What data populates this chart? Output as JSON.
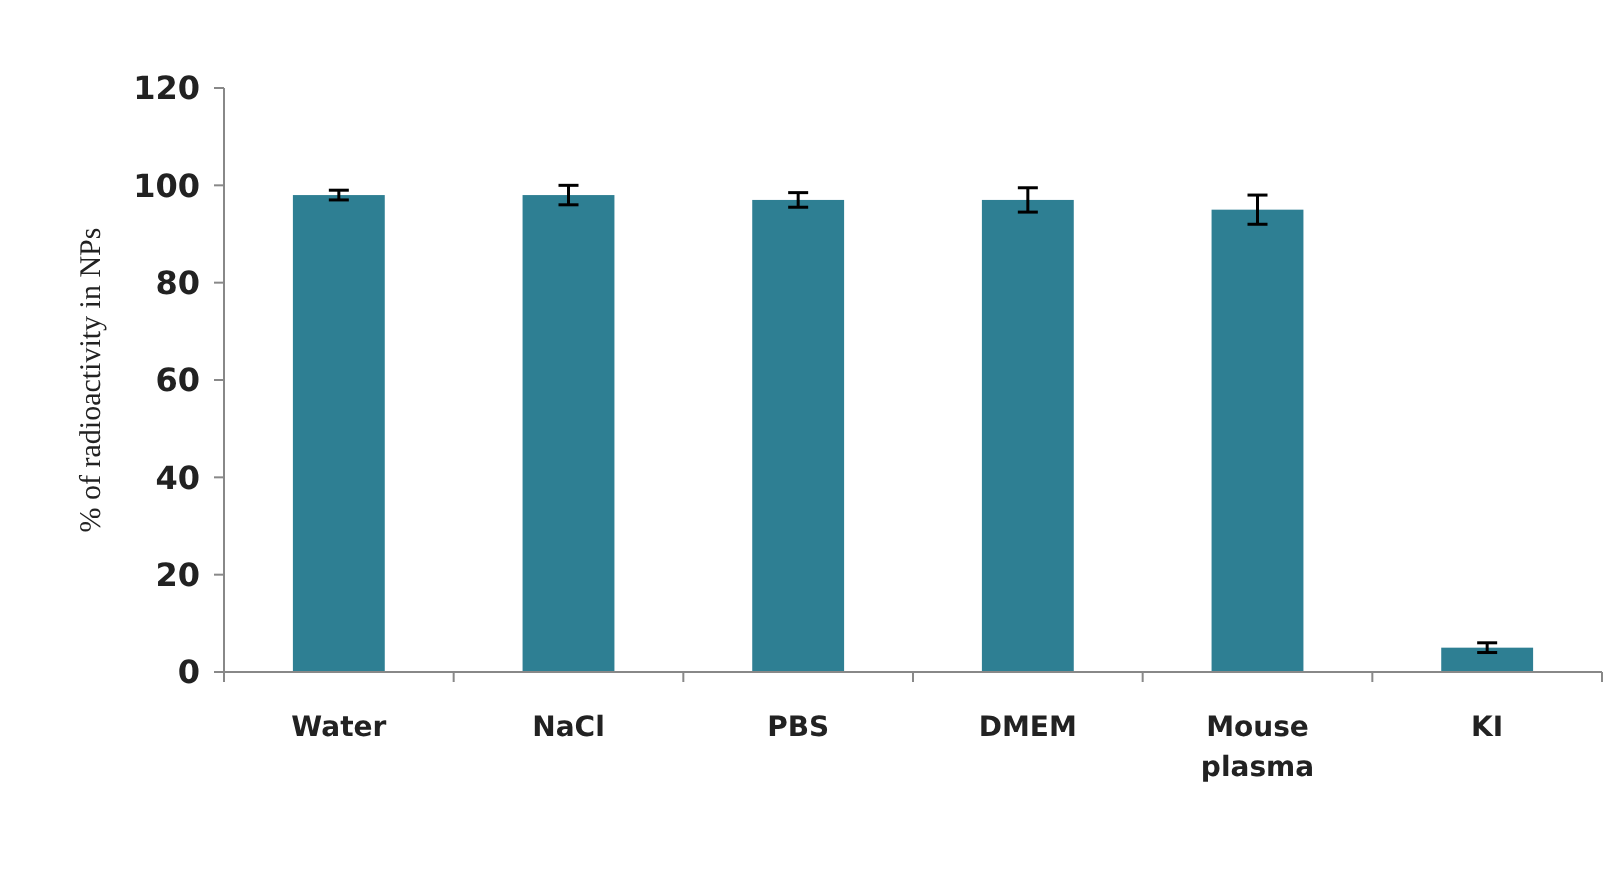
{
  "chart_data": {
    "type": "bar",
    "ylabel": "% of radioactivity in NPs",
    "categories": [
      "Water",
      "NaCl",
      "PBS",
      "DMEM",
      "Mouse plasma",
      "KI"
    ],
    "values": [
      98,
      98,
      97,
      97,
      95,
      5
    ],
    "errors": [
      1,
      2,
      1.5,
      2.5,
      3,
      1
    ],
    "color": "#2e7f93",
    "ylim": [
      0,
      120
    ],
    "yticks": [
      0,
      20,
      40,
      60,
      80,
      100,
      120
    ],
    "grid": false
  }
}
